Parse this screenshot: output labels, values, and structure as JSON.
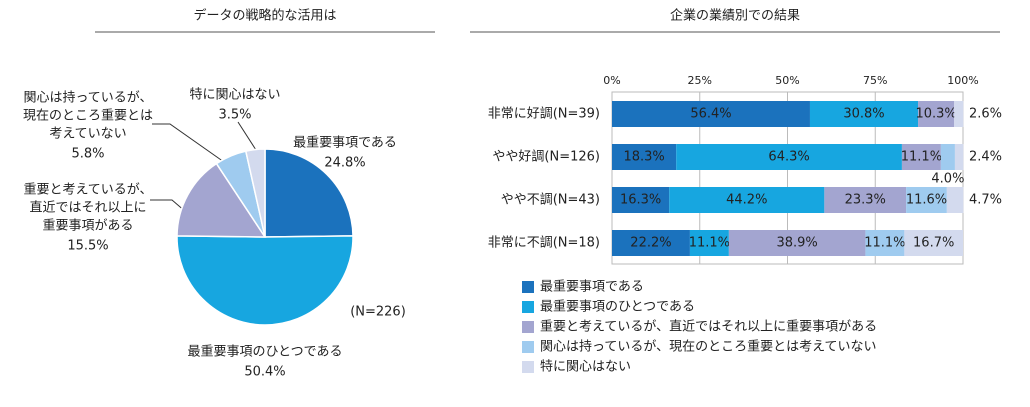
{
  "chart_data": [
    {
      "type": "pie",
      "title": "データの戦略的な活用は",
      "categories": [
        [
          "最重要事項である"
        ],
        [
          "最重要事項のひとつである"
        ],
        [
          "重要と考えているが、",
          "直近ではそれ以上に",
          "重要事項がある"
        ],
        [
          "関心は持っているが、",
          "現在のところ重要とは",
          "考えていない"
        ],
        [
          "特に関心はない"
        ]
      ],
      "values": [
        24.8,
        50.4,
        15.5,
        5.8,
        3.5
      ],
      "value_labels": [
        "24.8%",
        "50.4%",
        "15.5%",
        "5.8%",
        "3.5%"
      ],
      "colors": [
        "#1b72bd",
        "#17a6e0",
        "#a3a5d0",
        "#9fcbef",
        "#d3daee"
      ],
      "annotation": "(N=226)"
    },
    {
      "type": "stacked_bar_h",
      "title": "企業の業績別での結果",
      "categories": [
        "非常に好調(N=39)",
        "やや好調(N=126)",
        "やや不調(N=43)",
        "非常に不調(N=18)"
      ],
      "xlim": [
        0,
        100
      ],
      "xticks": [
        {
          "value": 0,
          "label": "0%"
        },
        {
          "value": 25,
          "label": "25%"
        },
        {
          "value": 50,
          "label": "50%"
        },
        {
          "value": 75,
          "label": "75%"
        },
        {
          "value": 100,
          "label": "100%"
        }
      ],
      "grid": true,
      "series": [
        {
          "name": "最重要事項である",
          "color": "#1b72bd",
          "values": [
            56.4,
            18.3,
            16.3,
            22.2
          ],
          "value_labels": [
            "56.4%",
            "18.3%",
            "16.3%",
            "22.2%"
          ]
        },
        {
          "name": "最重要事項のひとつである",
          "color": "#17a6e0",
          "values": [
            30.8,
            64.3,
            44.2,
            11.1
          ],
          "value_labels": [
            "30.8%",
            "64.3%",
            "44.2%",
            "11.1%"
          ]
        },
        {
          "name": "重要と考えているが、直近ではそれ以上に重要事項がある",
          "color": "#a3a5d0",
          "values": [
            10.3,
            11.1,
            23.3,
            38.9
          ],
          "value_labels": [
            "10.3%",
            "11.1%",
            "23.3%",
            "38.9%"
          ]
        },
        {
          "name": "関心は持っているが、現在のところ重要とは考えていない",
          "color": "#9fcbef",
          "values": [
            0,
            4.0,
            11.6,
            11.1
          ],
          "value_labels": [
            null,
            "4.0%",
            "11.6%",
            "11.1%"
          ]
        },
        {
          "name": "特に関心はない",
          "color": "#d3daee",
          "values": [
            2.6,
            2.4,
            4.7,
            16.7
          ],
          "value_labels": [
            "2.6%",
            "2.4%",
            "4.7%",
            "16.7%"
          ]
        }
      ]
    }
  ]
}
